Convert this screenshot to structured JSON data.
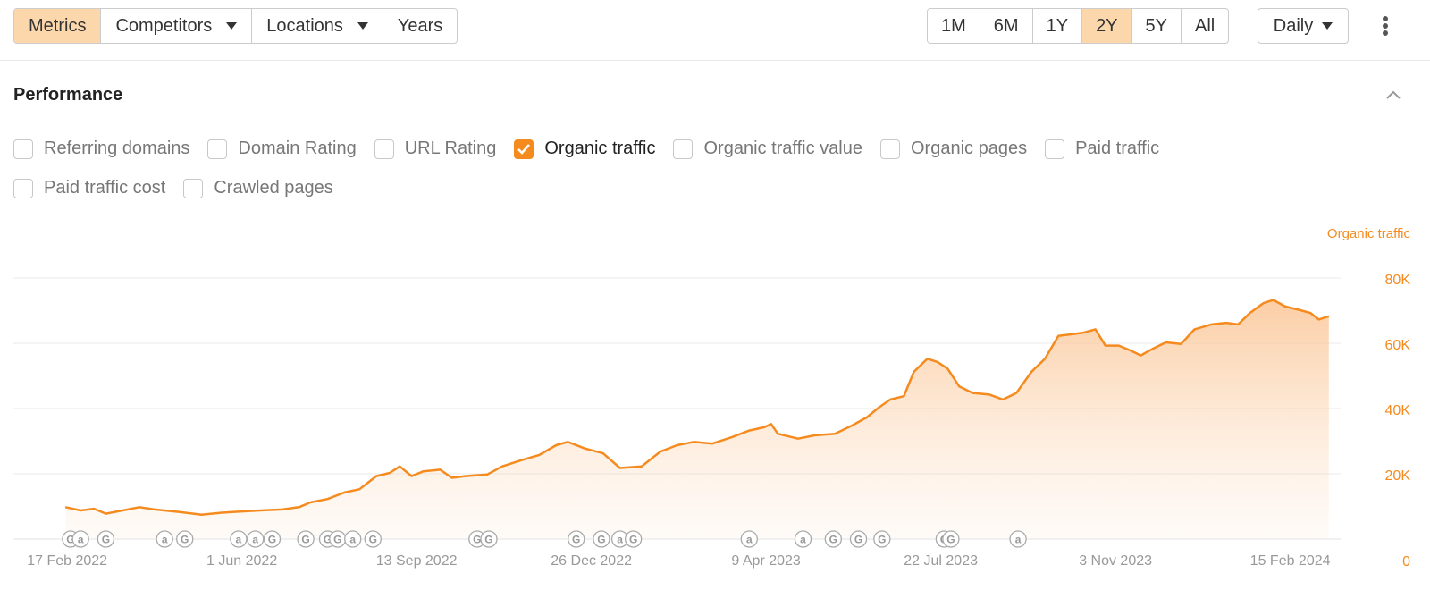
{
  "toolbar": {
    "left_buttons": [
      "Metrics",
      "Competitors",
      "Locations",
      "Years"
    ],
    "ranges": [
      "1M",
      "6M",
      "1Y",
      "2Y",
      "5Y",
      "All"
    ],
    "active_range": "2Y",
    "granularity": "Daily"
  },
  "section": {
    "title": "Performance"
  },
  "metrics": [
    {
      "label": "Referring domains",
      "checked": false
    },
    {
      "label": "Domain Rating",
      "checked": false
    },
    {
      "label": "URL Rating",
      "checked": false
    },
    {
      "label": "Organic traffic",
      "checked": true
    },
    {
      "label": "Organic traffic value",
      "checked": false
    },
    {
      "label": "Organic pages",
      "checked": false
    },
    {
      "label": "Paid traffic",
      "checked": false
    },
    {
      "label": "Paid traffic cost",
      "checked": false
    },
    {
      "label": "Crawled pages",
      "checked": false
    }
  ],
  "colors": {
    "accent": "#f58b1f",
    "active_bg": "#fdd7ac"
  },
  "chart_data": {
    "type": "area",
    "series": [
      {
        "name": "Organic traffic",
        "color": "#f58b1f"
      }
    ],
    "y_label": "Organic traffic",
    "ylim": [
      0,
      80000
    ],
    "y_ticks": [
      {
        "value": 80000,
        "label": "80K"
      },
      {
        "value": 60000,
        "label": "60K"
      },
      {
        "value": 40000,
        "label": "40K"
      },
      {
        "value": 20000,
        "label": "20K"
      },
      {
        "value": 0,
        "label": "0"
      }
    ],
    "x_ticks": [
      {
        "date": "2022-02-17",
        "label": "17 Feb 2022"
      },
      {
        "date": "2022-06-01",
        "label": "1 Jun 2022"
      },
      {
        "date": "2022-09-13",
        "label": "13 Sep 2022"
      },
      {
        "date": "2022-12-26",
        "label": "26 Dec 2022"
      },
      {
        "date": "2023-04-09",
        "label": "9 Apr 2023"
      },
      {
        "date": "2023-07-22",
        "label": "22 Jul 2023"
      },
      {
        "date": "2023-11-03",
        "label": "3 Nov 2023"
      },
      {
        "date": "2024-02-15",
        "label": "15 Feb 2024"
      }
    ],
    "xlim": [
      "2022-01-16",
      "2024-03-16"
    ],
    "grid": true,
    "points": [
      [
        "2022-02-16",
        9500
      ],
      [
        "2022-02-25",
        8500
      ],
      [
        "2022-03-05",
        9000
      ],
      [
        "2022-03-12",
        7500
      ],
      [
        "2022-03-22",
        8500
      ],
      [
        "2022-04-01",
        9500
      ],
      [
        "2022-04-10",
        8800
      ],
      [
        "2022-04-25",
        8000
      ],
      [
        "2022-05-08",
        7200
      ],
      [
        "2022-05-20",
        7800
      ],
      [
        "2022-06-01",
        8200
      ],
      [
        "2022-06-12",
        8500
      ],
      [
        "2022-06-25",
        8800
      ],
      [
        "2022-07-05",
        9500
      ],
      [
        "2022-07-12",
        11000
      ],
      [
        "2022-07-22",
        12000
      ],
      [
        "2022-08-01",
        14000
      ],
      [
        "2022-08-10",
        15000
      ],
      [
        "2022-08-20",
        19000
      ],
      [
        "2022-08-28",
        20000
      ],
      [
        "2022-09-03",
        22000
      ],
      [
        "2022-09-10",
        19000
      ],
      [
        "2022-09-17",
        20500
      ],
      [
        "2022-09-27",
        21000
      ],
      [
        "2022-10-04",
        18500
      ],
      [
        "2022-10-12",
        19000
      ],
      [
        "2022-10-25",
        19500
      ],
      [
        "2022-11-03",
        22000
      ],
      [
        "2022-11-15",
        24000
      ],
      [
        "2022-11-25",
        25500
      ],
      [
        "2022-12-05",
        28500
      ],
      [
        "2022-12-12",
        29500
      ],
      [
        "2022-12-22",
        27500
      ],
      [
        "2023-01-02",
        26000
      ],
      [
        "2023-01-12",
        21500
      ],
      [
        "2023-01-25",
        22000
      ],
      [
        "2023-02-05",
        26500
      ],
      [
        "2023-02-15",
        28500
      ],
      [
        "2023-02-25",
        29500
      ],
      [
        "2023-03-08",
        29000
      ],
      [
        "2023-03-20",
        31000
      ],
      [
        "2023-03-30",
        33000
      ],
      [
        "2023-04-08",
        34000
      ],
      [
        "2023-04-12",
        35000
      ],
      [
        "2023-04-16",
        32000
      ],
      [
        "2023-04-28",
        30500
      ],
      [
        "2023-05-08",
        31500
      ],
      [
        "2023-05-20",
        32000
      ],
      [
        "2023-05-30",
        34500
      ],
      [
        "2023-06-08",
        37000
      ],
      [
        "2023-06-15",
        40000
      ],
      [
        "2023-06-22",
        42500
      ],
      [
        "2023-06-30",
        43500
      ],
      [
        "2023-07-06",
        51000
      ],
      [
        "2023-07-14",
        55000
      ],
      [
        "2023-07-20",
        54000
      ],
      [
        "2023-07-26",
        52000
      ],
      [
        "2023-08-02",
        46500
      ],
      [
        "2023-08-10",
        44500
      ],
      [
        "2023-08-20",
        44000
      ],
      [
        "2023-08-28",
        42500
      ],
      [
        "2023-09-05",
        44500
      ],
      [
        "2023-09-14",
        51000
      ],
      [
        "2023-09-22",
        55000
      ],
      [
        "2023-09-30",
        62000
      ],
      [
        "2023-10-08",
        62500
      ],
      [
        "2023-10-15",
        63000
      ],
      [
        "2023-10-22",
        64000
      ],
      [
        "2023-10-28",
        59000
      ],
      [
        "2023-11-05",
        59000
      ],
      [
        "2023-11-12",
        57500
      ],
      [
        "2023-11-18",
        56000
      ],
      [
        "2023-11-25",
        58000
      ],
      [
        "2023-12-03",
        60000
      ],
      [
        "2023-12-12",
        59500
      ],
      [
        "2023-12-20",
        64000
      ],
      [
        "2023-12-30",
        65500
      ],
      [
        "2024-01-08",
        66000
      ],
      [
        "2024-01-15",
        65500
      ],
      [
        "2024-01-22",
        69000
      ],
      [
        "2024-01-30",
        72000
      ],
      [
        "2024-02-05",
        73000
      ],
      [
        "2024-02-12",
        71000
      ],
      [
        "2024-02-20",
        70000
      ],
      [
        "2024-02-27",
        69000
      ],
      [
        "2024-03-03",
        67000
      ],
      [
        "2024-03-09",
        68000
      ]
    ],
    "annotations": [
      {
        "date": "2022-02-19",
        "type": "G"
      },
      {
        "date": "2022-02-25",
        "type": "a"
      },
      {
        "date": "2022-03-12",
        "type": "G"
      },
      {
        "date": "2022-04-16",
        "type": "a"
      },
      {
        "date": "2022-04-28",
        "type": "G"
      },
      {
        "date": "2022-05-30",
        "type": "a"
      },
      {
        "date": "2022-06-09",
        "type": "a"
      },
      {
        "date": "2022-06-19",
        "type": "G"
      },
      {
        "date": "2022-07-09",
        "type": "G"
      },
      {
        "date": "2022-07-22",
        "type": "G"
      },
      {
        "date": "2022-07-28",
        "type": "G"
      },
      {
        "date": "2022-08-06",
        "type": "a"
      },
      {
        "date": "2022-08-18",
        "type": "G"
      },
      {
        "date": "2022-10-19",
        "type": "G"
      },
      {
        "date": "2022-10-26",
        "type": "G"
      },
      {
        "date": "2022-12-17",
        "type": "G"
      },
      {
        "date": "2023-01-01",
        "type": "G"
      },
      {
        "date": "2023-01-12",
        "type": "a"
      },
      {
        "date": "2023-01-20",
        "type": "G"
      },
      {
        "date": "2023-03-30",
        "type": "a"
      },
      {
        "date": "2023-05-01",
        "type": "a"
      },
      {
        "date": "2023-05-19",
        "type": "G"
      },
      {
        "date": "2023-06-03",
        "type": "G"
      },
      {
        "date": "2023-06-17",
        "type": "G"
      },
      {
        "date": "2023-07-24",
        "type": "G"
      },
      {
        "date": "2023-07-28",
        "type": "G"
      },
      {
        "date": "2023-09-06",
        "type": "a"
      }
    ]
  }
}
